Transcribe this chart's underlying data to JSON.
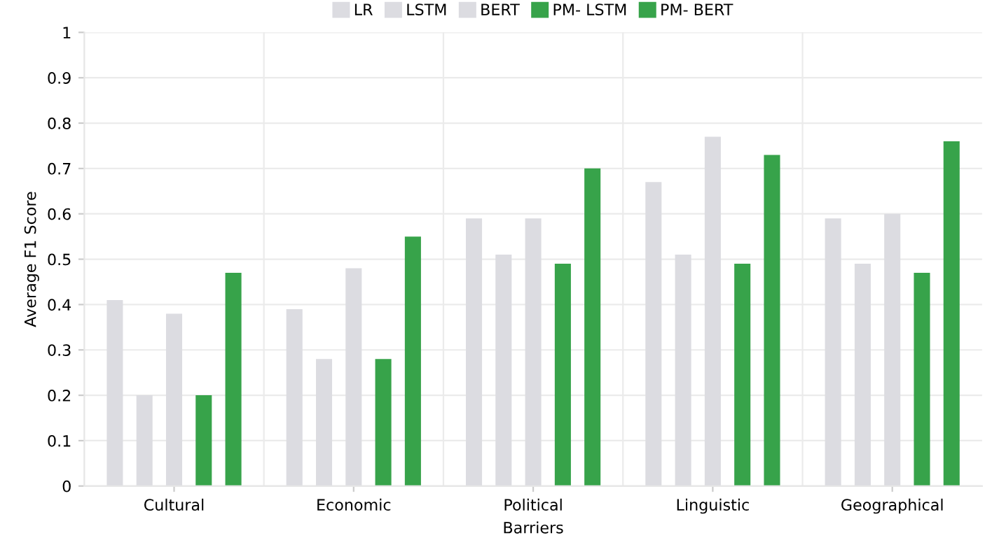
{
  "chart_data": {
    "type": "bar",
    "xlabel": "Barriers",
    "ylabel": "Average F1 Score",
    "categories": [
      "Cultural",
      "Economic",
      "Political",
      "Linguistic",
      "Geographical"
    ],
    "series": [
      {
        "name": "LR",
        "color": "#dcdce1",
        "values": [
          0.41,
          0.39,
          0.59,
          0.67,
          0.59
        ]
      },
      {
        "name": "LSTM",
        "color": "#dcdce1",
        "values": [
          0.2,
          0.28,
          0.51,
          0.51,
          0.49
        ]
      },
      {
        "name": "BERT",
        "color": "#dcdce1",
        "values": [
          0.38,
          0.48,
          0.59,
          0.77,
          0.6
        ]
      },
      {
        "name": "PM- LSTM",
        "color": "#37a34a",
        "values": [
          0.2,
          0.28,
          0.49,
          0.49,
          0.47
        ]
      },
      {
        "name": "PM- BERT",
        "color": "#37a34a",
        "values": [
          0.47,
          0.55,
          0.7,
          0.73,
          0.76
        ]
      }
    ],
    "ylim": [
      0,
      1
    ],
    "yticks": [
      0,
      0.1,
      0.2,
      0.3,
      0.4,
      0.5,
      0.6,
      0.7,
      0.8,
      0.9,
      1
    ],
    "grid": true,
    "legend": "top"
  }
}
